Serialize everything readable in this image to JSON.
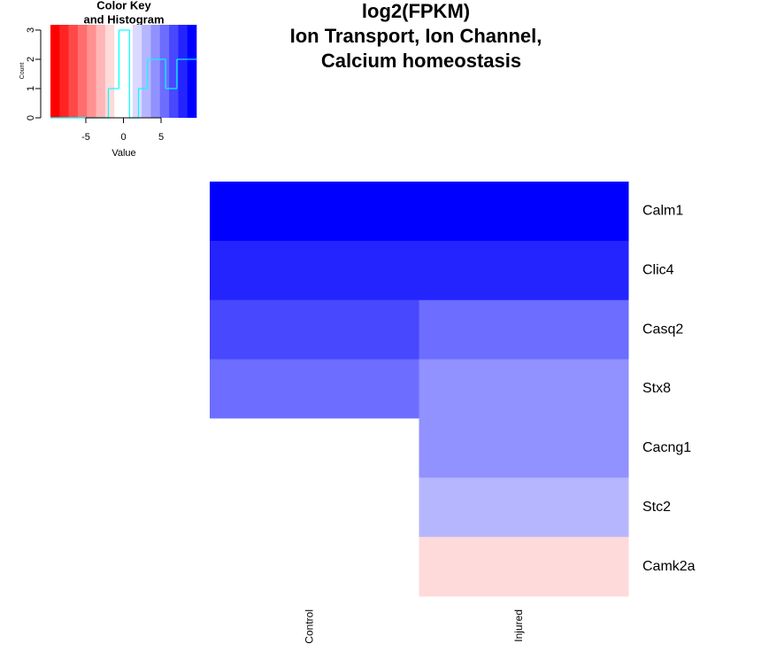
{
  "chart_data": [
    {
      "type": "histogram",
      "title": [
        "Color Key",
        "and Histogram"
      ],
      "xlabel": "Value",
      "ylabel": "Count",
      "bins": [
        -9.7,
        -2,
        -0.6,
        0.8,
        2,
        3.2,
        5.6,
        7.1,
        9.7
      ],
      "counts": [
        0,
        1,
        3,
        0,
        1,
        2,
        1,
        2
      ],
      "xlim": [
        -9.7,
        9.7
      ],
      "ylim": [
        0,
        3.18
      ],
      "xticks": [
        -5,
        0,
        5
      ],
      "yticks": [
        0,
        1,
        2,
        3
      ],
      "colors": [
        "#ff0000",
        "#ff2424",
        "#ff4848",
        "#ff6d6d",
        "#ff9191",
        "#ffb6b6",
        "#ffdada",
        "#ffffff",
        "#ffffff",
        "#dadaff",
        "#b6b6ff",
        "#9191ff",
        "#6d6dff",
        "#4848ff",
        "#2424ff",
        "#0000ff"
      ],
      "line_color": "#00ffff"
    },
    {
      "type": "heatmap",
      "title": [
        "log2(FPKM)",
        "Ion Transport, Ion Channel,",
        "Calcium homeostasis"
      ],
      "rows": [
        "Calm1",
        "Clic4",
        "Casq2",
        "Stx8",
        "Cacng1",
        "Stc2",
        "Camk2a"
      ],
      "columns": [
        "Control",
        "Injured"
      ],
      "values": [
        [
          9,
          9
        ],
        [
          8,
          8
        ],
        [
          7,
          5.5
        ],
        [
          5.5,
          4
        ],
        [
          0.3,
          4
        ],
        [
          0.3,
          2.5
        ],
        [
          0.3,
          -1.5
        ]
      ]
    }
  ]
}
